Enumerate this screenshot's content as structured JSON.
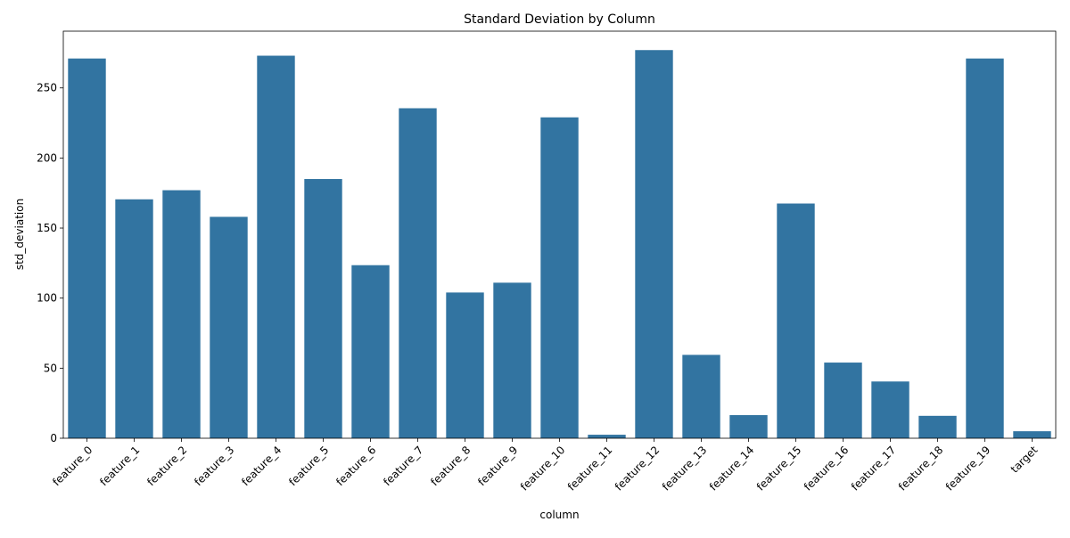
{
  "chart_data": {
    "type": "bar",
    "title": "Standard Deviation by Column",
    "xlabel": "column",
    "ylabel": "std_deviation",
    "categories": [
      "feature_0",
      "feature_1",
      "feature_2",
      "feature_3",
      "feature_4",
      "feature_5",
      "feature_6",
      "feature_7",
      "feature_8",
      "feature_9",
      "feature_10",
      "feature_11",
      "feature_12",
      "feature_13",
      "feature_14",
      "feature_15",
      "feature_16",
      "feature_17",
      "feature_18",
      "feature_19",
      "target"
    ],
    "values": [
      271,
      170.5,
      177,
      158,
      273,
      185,
      123.5,
      235.5,
      104,
      111,
      229,
      2.5,
      277,
      59.5,
      16.5,
      167.5,
      54,
      40.5,
      16,
      271,
      5
    ],
    "ylim": [
      0,
      290.5
    ],
    "yticks": [
      0,
      50,
      100,
      150,
      200,
      250
    ],
    "grid": false,
    "bar_color": "#3274a1",
    "x_tick_rotation": 45
  }
}
